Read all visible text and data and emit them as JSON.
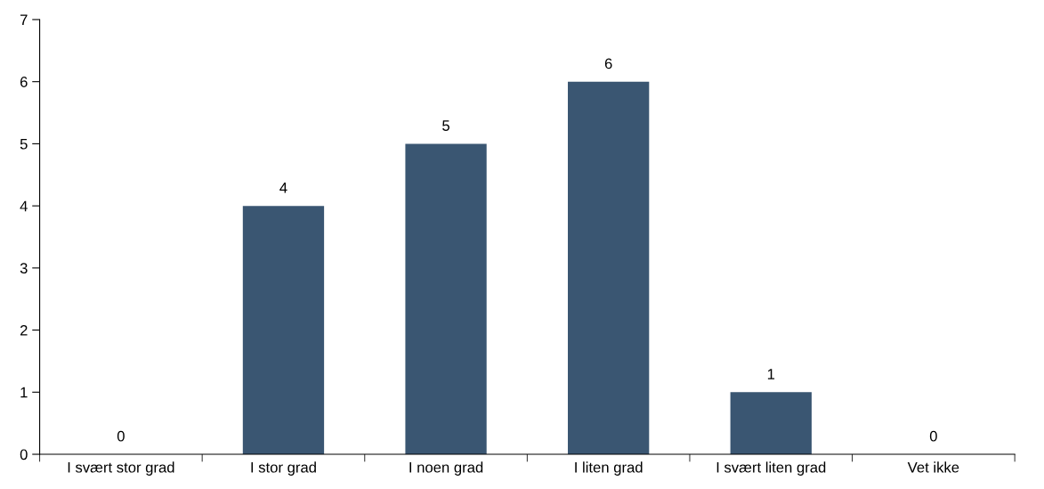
{
  "chart_data": {
    "type": "bar",
    "categories": [
      "I svært stor grad",
      "I stor grad",
      "I noen grad",
      "I liten grad",
      "I svært liten grad",
      "Vet ikke"
    ],
    "values": [
      0,
      4,
      5,
      6,
      1,
      0
    ],
    "color": "#3a5672",
    "ylim": [
      0,
      7
    ],
    "yticks": [
      0,
      1,
      2,
      3,
      4,
      5,
      6,
      7
    ],
    "data_labels": true,
    "grid": false
  }
}
